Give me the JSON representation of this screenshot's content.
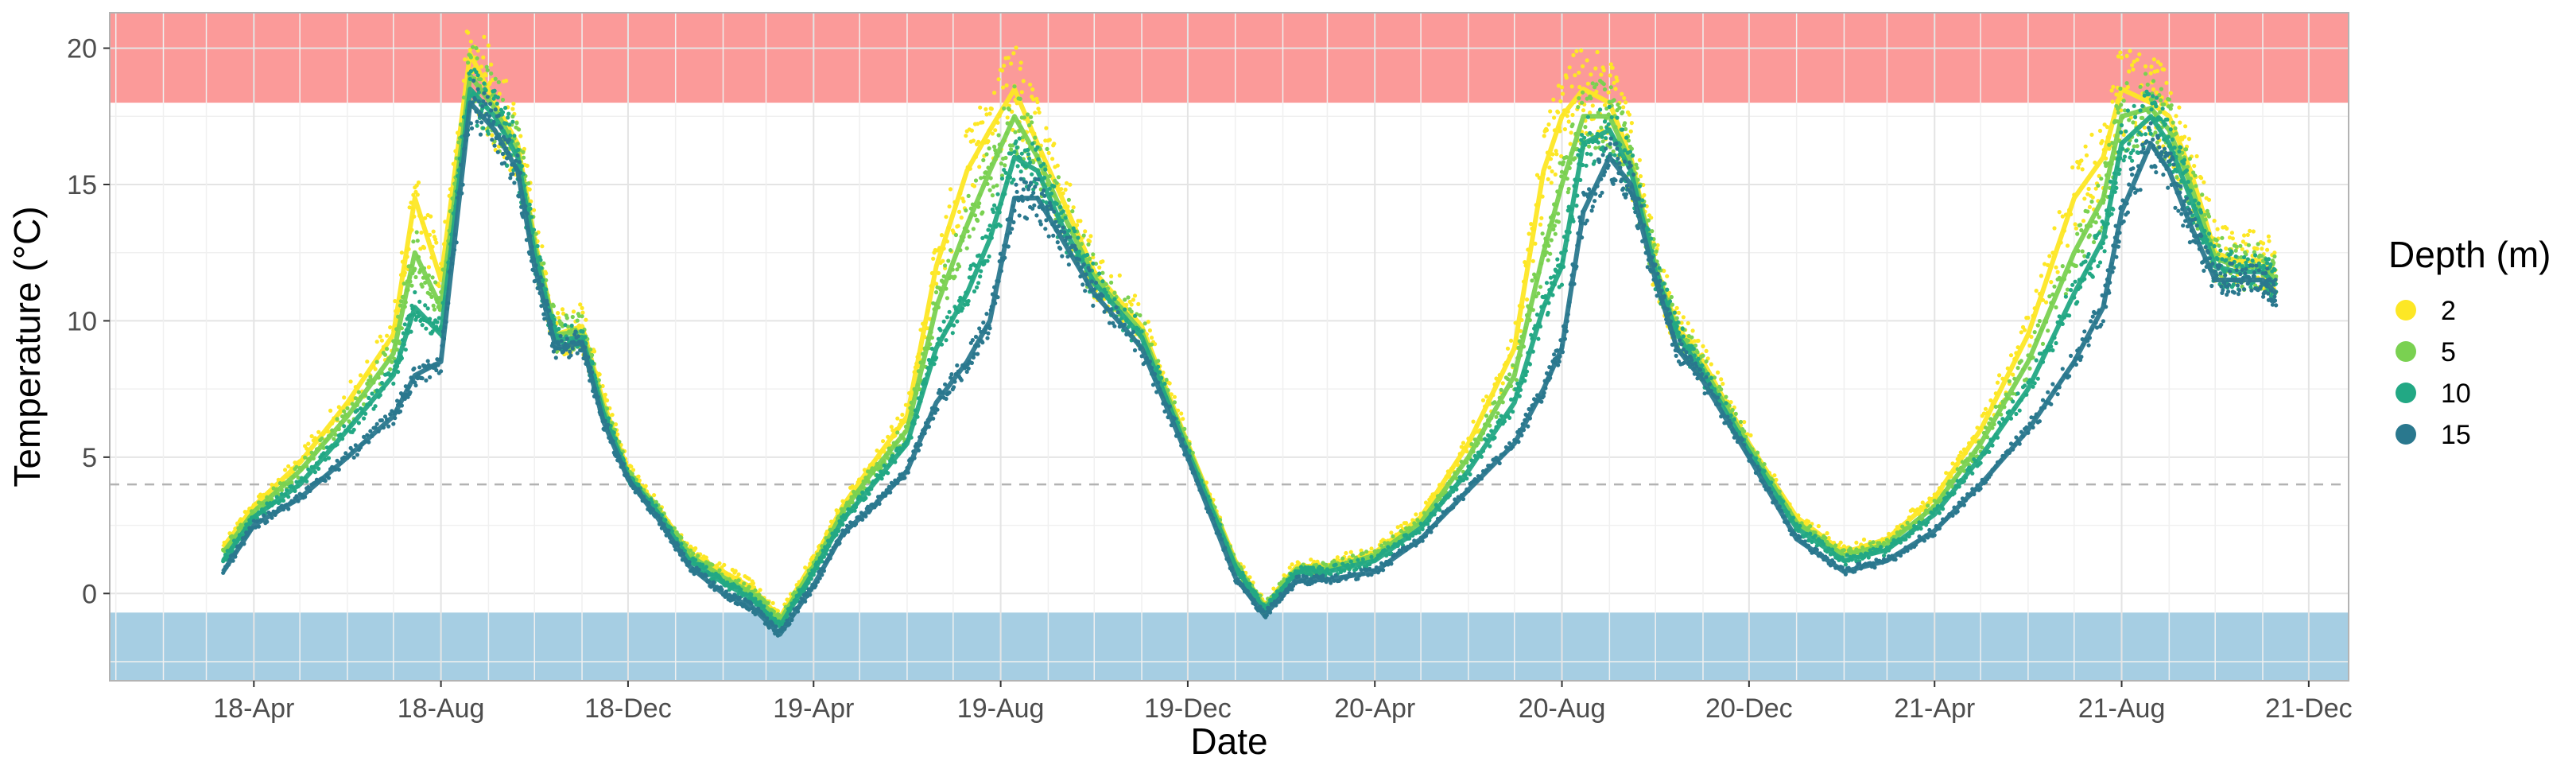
{
  "chart_data": {
    "type": "scatter",
    "xlabel": "Date",
    "ylabel": "Temperature (°C)",
    "x_ticks": [
      "18-Apr",
      "18-Aug",
      "18-Dec",
      "19-Apr",
      "19-Aug",
      "19-Dec",
      "20-Apr",
      "20-Aug",
      "20-Dec",
      "21-Apr",
      "21-Aug",
      "21-Dec"
    ],
    "x_tick_dates": [
      "2018-04-01",
      "2018-08-01",
      "2018-12-01",
      "2019-04-01",
      "2019-08-01",
      "2019-12-01",
      "2020-04-01",
      "2020-08-01",
      "2020-12-01",
      "2021-04-01",
      "2021-08-01",
      "2021-12-01"
    ],
    "xlim": [
      "2017-12-28",
      "2021-12-27"
    ],
    "y_ticks": [
      0,
      5,
      10,
      15,
      20
    ],
    "ylim": [
      -3.2,
      21.3
    ],
    "grid": true,
    "legend": {
      "title": "Depth (m)",
      "position": "right"
    },
    "reference_line": {
      "y": 4,
      "style": "dashed",
      "color": "#b3b3b3"
    },
    "bands": [
      {
        "ymin": 18,
        "ymax": 21.3,
        "color": "#fb9a99"
      },
      {
        "ymin": -3.2,
        "ymax": -0.7,
        "color": "#a6cee3"
      }
    ],
    "series": [
      {
        "name": "2",
        "color": "#fde725",
        "x": [
          "2018-03-12",
          "2018-04-01",
          "2018-05-01",
          "2018-06-01",
          "2018-07-01",
          "2018-07-15",
          "2018-08-01",
          "2018-08-20",
          "2018-09-05",
          "2018-09-20",
          "2018-10-01",
          "2018-10-15",
          "2018-11-01",
          "2018-11-15",
          "2018-12-01",
          "2018-12-20",
          "2019-01-10",
          "2019-02-01",
          "2019-02-20",
          "2019-03-10",
          "2019-04-01",
          "2019-04-20",
          "2019-05-10",
          "2019-06-01",
          "2019-06-20",
          "2019-07-10",
          "2019-07-25",
          "2019-08-10",
          "2019-08-25",
          "2019-09-10",
          "2019-10-01",
          "2019-11-01",
          "2019-12-01",
          "2020-01-01",
          "2020-01-20",
          "2020-02-10",
          "2020-03-01",
          "2020-04-01",
          "2020-05-01",
          "2020-06-01",
          "2020-07-01",
          "2020-07-20",
          "2020-08-01",
          "2020-08-15",
          "2020-09-01",
          "2020-09-15",
          "2020-10-01",
          "2020-10-15",
          "2020-11-01",
          "2020-12-01",
          "2021-01-01",
          "2021-02-01",
          "2021-03-01",
          "2021-04-01",
          "2021-05-01",
          "2021-06-01",
          "2021-07-01",
          "2021-07-20",
          "2021-08-01",
          "2021-08-20",
          "2021-09-01",
          "2021-09-15",
          "2021-10-01",
          "2021-10-15",
          "2021-11-01",
          "2021-11-10"
        ],
        "y": [
          1.7,
          3.2,
          4.8,
          7.0,
          9.5,
          14.5,
          11.5,
          19.8,
          18.0,
          16.5,
          13.0,
          9.5,
          9.8,
          7.0,
          4.5,
          3.2,
          1.5,
          0.8,
          0.2,
          -0.9,
          1.2,
          3.2,
          4.8,
          6.5,
          12.0,
          15.5,
          17.0,
          18.5,
          16.5,
          14.5,
          11.8,
          9.8,
          5.5,
          1.2,
          -0.5,
          1.0,
          1.0,
          1.5,
          2.8,
          5.5,
          9.0,
          15.5,
          17.5,
          18.5,
          18.0,
          16.0,
          12.0,
          9.8,
          8.5,
          5.5,
          2.8,
          1.5,
          2.0,
          3.5,
          6.0,
          9.5,
          14.5,
          16.0,
          18.5,
          18.0,
          17.5,
          15.5,
          12.5,
          12.2,
          12.2,
          11.8
        ]
      },
      {
        "name": "5",
        "color": "#7ad151",
        "x": [
          "2018-03-12",
          "2018-04-01",
          "2018-05-01",
          "2018-06-01",
          "2018-07-01",
          "2018-07-15",
          "2018-08-01",
          "2018-08-20",
          "2018-09-05",
          "2018-09-20",
          "2018-10-01",
          "2018-10-15",
          "2018-11-01",
          "2018-11-15",
          "2018-12-01",
          "2018-12-20",
          "2019-01-10",
          "2019-02-01",
          "2019-02-20",
          "2019-03-10",
          "2019-04-01",
          "2019-04-20",
          "2019-05-10",
          "2019-06-01",
          "2019-06-20",
          "2019-07-10",
          "2019-07-25",
          "2019-08-10",
          "2019-08-25",
          "2019-09-10",
          "2019-10-01",
          "2019-11-01",
          "2019-12-01",
          "2020-01-01",
          "2020-01-20",
          "2020-02-10",
          "2020-03-01",
          "2020-04-01",
          "2020-05-01",
          "2020-06-01",
          "2020-07-01",
          "2020-07-20",
          "2020-08-01",
          "2020-08-15",
          "2020-09-01",
          "2020-09-15",
          "2020-10-01",
          "2020-10-15",
          "2020-11-01",
          "2020-12-01",
          "2021-01-01",
          "2021-02-01",
          "2021-03-01",
          "2021-04-01",
          "2021-05-01",
          "2021-06-01",
          "2021-07-01",
          "2021-07-20",
          "2021-08-01",
          "2021-08-20",
          "2021-09-01",
          "2021-09-15",
          "2021-10-01",
          "2021-10-15",
          "2021-11-01",
          "2021-11-10"
        ],
        "y": [
          1.5,
          3.0,
          4.5,
          6.5,
          8.8,
          12.5,
          10.5,
          19.0,
          17.8,
          16.2,
          12.8,
          9.5,
          9.6,
          6.8,
          4.4,
          3.1,
          1.4,
          0.6,
          0.0,
          -1.0,
          1.0,
          3.0,
          4.5,
          6.0,
          10.5,
          13.5,
          15.5,
          17.5,
          16.0,
          14.0,
          11.6,
          9.6,
          5.4,
          1.1,
          -0.5,
          0.9,
          0.9,
          1.4,
          2.6,
          5.0,
          8.0,
          12.5,
          15.0,
          17.5,
          17.5,
          15.8,
          12.0,
          9.6,
          8.3,
          5.4,
          2.6,
          1.4,
          1.8,
          3.2,
          5.5,
          8.5,
          12.5,
          14.5,
          17.5,
          17.8,
          17.0,
          15.0,
          12.3,
          12.0,
          12.0,
          11.5
        ]
      },
      {
        "name": "10",
        "color": "#22a884",
        "x": [
          "2018-03-12",
          "2018-04-01",
          "2018-05-01",
          "2018-06-01",
          "2018-07-01",
          "2018-07-15",
          "2018-08-01",
          "2018-08-20",
          "2018-09-05",
          "2018-09-20",
          "2018-10-01",
          "2018-10-15",
          "2018-11-01",
          "2018-11-15",
          "2018-12-01",
          "2018-12-20",
          "2019-01-10",
          "2019-02-01",
          "2019-02-20",
          "2019-03-10",
          "2019-04-01",
          "2019-04-20",
          "2019-05-10",
          "2019-06-01",
          "2019-06-20",
          "2019-07-10",
          "2019-07-25",
          "2019-08-10",
          "2019-08-25",
          "2019-09-10",
          "2019-10-01",
          "2019-11-01",
          "2019-12-01",
          "2020-01-01",
          "2020-01-20",
          "2020-02-10",
          "2020-03-01",
          "2020-04-01",
          "2020-05-01",
          "2020-06-01",
          "2020-07-01",
          "2020-07-20",
          "2020-08-01",
          "2020-08-15",
          "2020-09-01",
          "2020-09-15",
          "2020-10-01",
          "2020-10-15",
          "2020-11-01",
          "2020-12-01",
          "2021-01-01",
          "2021-02-01",
          "2021-03-01",
          "2021-04-01",
          "2021-05-01",
          "2021-06-01",
          "2021-07-01",
          "2021-07-20",
          "2021-08-01",
          "2021-08-20",
          "2021-09-01",
          "2021-09-15",
          "2021-10-01",
          "2021-10-15",
          "2021-11-01",
          "2021-11-10"
        ],
        "y": [
          1.2,
          2.8,
          4.0,
          6.0,
          8.0,
          10.5,
          9.5,
          18.5,
          17.5,
          16.0,
          12.5,
          9.3,
          9.4,
          6.6,
          4.3,
          3.0,
          1.2,
          0.4,
          -0.2,
          -1.2,
          0.8,
          2.7,
          4.0,
          5.5,
          9.0,
          11.0,
          13.0,
          16.0,
          15.5,
          13.5,
          11.4,
          9.4,
          5.2,
          1.0,
          -0.6,
          0.8,
          0.8,
          1.2,
          2.4,
          4.5,
          7.0,
          10.5,
          12.0,
          16.5,
          17.0,
          15.5,
          11.8,
          9.5,
          8.1,
          5.2,
          2.4,
          1.2,
          1.6,
          2.9,
          5.0,
          7.5,
          11.0,
          13.0,
          16.5,
          17.5,
          16.5,
          14.5,
          12.0,
          11.8,
          11.8,
          11.3
        ]
      },
      {
        "name": "15",
        "color": "#2a788e",
        "x": [
          "2018-03-12",
          "2018-04-01",
          "2018-05-01",
          "2018-06-01",
          "2018-07-01",
          "2018-07-15",
          "2018-08-01",
          "2018-08-20",
          "2018-09-05",
          "2018-09-20",
          "2018-10-01",
          "2018-10-15",
          "2018-11-01",
          "2018-11-15",
          "2018-12-01",
          "2018-12-20",
          "2019-01-10",
          "2019-02-01",
          "2019-02-20",
          "2019-03-10",
          "2019-04-01",
          "2019-04-20",
          "2019-05-10",
          "2019-06-01",
          "2019-06-20",
          "2019-07-10",
          "2019-07-25",
          "2019-08-10",
          "2019-08-25",
          "2019-09-10",
          "2019-10-01",
          "2019-11-01",
          "2019-12-01",
          "2020-01-01",
          "2020-01-20",
          "2020-02-10",
          "2020-03-01",
          "2020-04-01",
          "2020-05-01",
          "2020-06-01",
          "2020-07-01",
          "2020-07-20",
          "2020-08-01",
          "2020-08-15",
          "2020-09-01",
          "2020-09-15",
          "2020-10-01",
          "2020-10-15",
          "2020-11-01",
          "2020-12-01",
          "2021-01-01",
          "2021-02-01",
          "2021-03-01",
          "2021-04-01",
          "2021-05-01",
          "2021-06-01",
          "2021-07-01",
          "2021-07-20",
          "2021-08-01",
          "2021-08-20",
          "2021-09-01",
          "2021-09-15",
          "2021-10-01",
          "2021-10-15",
          "2021-11-01",
          "2021-11-10"
        ],
        "y": [
          0.8,
          2.5,
          3.5,
          5.0,
          6.5,
          8.0,
          8.5,
          18.0,
          17.0,
          15.5,
          12.0,
          9.0,
          9.2,
          6.3,
          4.2,
          2.8,
          1.0,
          0.0,
          -0.5,
          -1.5,
          0.3,
          2.2,
          3.2,
          4.5,
          7.0,
          8.5,
          10.0,
          14.5,
          14.5,
          13.0,
          11.0,
          9.0,
          5.0,
          0.6,
          -0.8,
          0.5,
          0.5,
          0.8,
          2.0,
          3.8,
          5.5,
          7.5,
          9.0,
          14.0,
          16.0,
          15.0,
          11.5,
          9.0,
          7.8,
          5.0,
          2.0,
          0.8,
          1.2,
          2.3,
          4.0,
          6.0,
          8.5,
          10.5,
          14.0,
          16.5,
          15.5,
          13.5,
          11.5,
          11.5,
          11.5,
          11.0
        ]
      }
    ]
  }
}
